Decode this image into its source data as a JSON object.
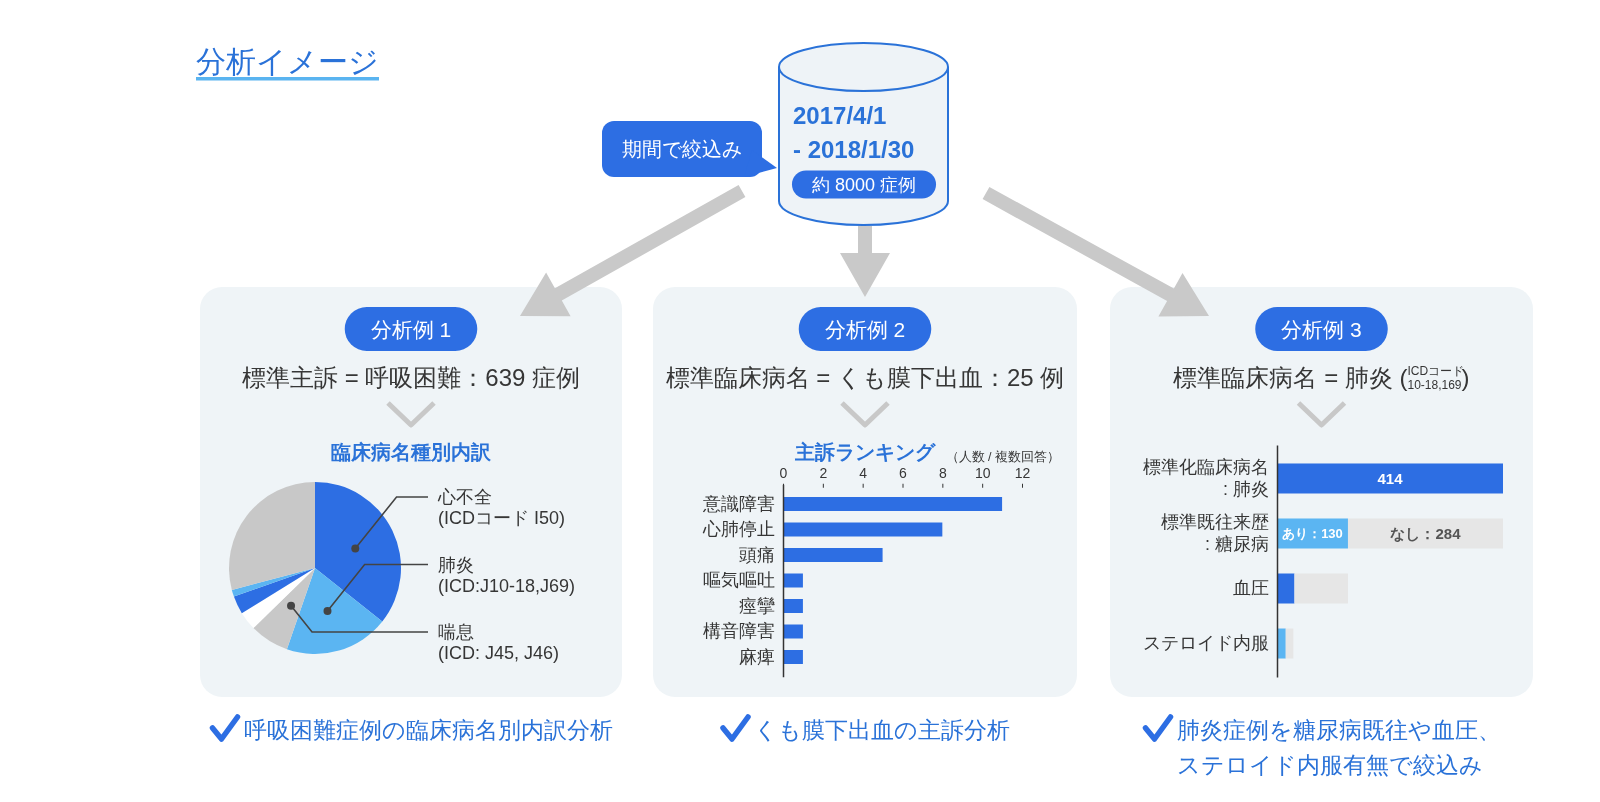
{
  "chart_data": [
    {
      "type": "other",
      "title": "分析イメージ",
      "annotations": [
        "2017/4/1",
        "- 2018/1/30",
        "約 8000 症例",
        "期間で絞込み"
      ]
    },
    {
      "type": "pie",
      "title": "分析例 1",
      "subtitle": "標準主訴 = 呼吸困難：639 症例",
      "annotations": [
        "臨床病名種別内訳",
        "呼吸困難症例の臨床病名別内訳分析"
      ],
      "categories": [
        "心不全\n(ICDコード I50)",
        "肺炎\n(ICD:J10-18,J69)",
        "喘息\n(ICD: J45, J46)",
        null,
        null,
        null,
        null
      ],
      "values": [
        35.7,
        19.6,
        7.4,
        3.5,
        3.4,
        1.3,
        29.1
      ],
      "colors": [
        "#2d6ee3",
        "#5bb5f2",
        "#c8c8c8",
        "#ffffff",
        "#2d6ee3",
        "#5bb5f2",
        "#c8c8c8"
      ]
    },
    {
      "type": "bar",
      "orientation": "horizontal",
      "title": "分析例 2",
      "subtitle": "標準臨床病名 = くも膜下出血：25 例",
      "annotations": [
        "主訴ランキング",
        "くも膜下出血の主訴分析"
      ],
      "xlabel": "（人数 / 複数回答）",
      "categories": [
        "意識障害",
        "心肺停止",
        "頭痛",
        "嘔気嘔吐",
        "痙攣",
        "構音障害",
        "麻痺"
      ],
      "values": [
        11,
        8,
        5,
        1,
        1,
        1,
        1
      ],
      "color": "#2d6ee3",
      "xlim": [
        0,
        12
      ],
      "xticks": [
        0,
        2,
        4,
        6,
        8,
        10,
        12
      ]
    },
    {
      "type": "bar",
      "orientation": "horizontal",
      "stacked": true,
      "title": "分析例 3",
      "subtitle": "標準臨床病名 = 肺炎 ($^{ICDコード}$$_{10-18,169}$)",
      "annotations": [
        "肺炎症例を糖尿病既往や血圧、ステロイド内服有無で絞込み"
      ],
      "categories": [
        "標準化臨床病名\n: 肺炎",
        "標準既往来歴\n: 糖尿病",
        "血圧",
        "ステロイド内服"
      ],
      "series": [
        {
          "colors": [
            "#2d6ee3",
            "#5bb5f2",
            "#2d6ee3",
            "#5bb5f2"
          ],
          "values": [
            414,
            130,
            32,
            16
          ],
          "value_labels": [
            "414",
            "あり：130",
            null,
            null
          ]
        },
        {
          "color": "#e6e6e6",
          "values": [
            null,
            284,
            98,
            14
          ],
          "value_labels": [
            null,
            "なし：284",
            null,
            null
          ]
        }
      ],
      "xlim": [
        0,
        414
      ],
      "tick_labels": "y"
    }
  ]
}
